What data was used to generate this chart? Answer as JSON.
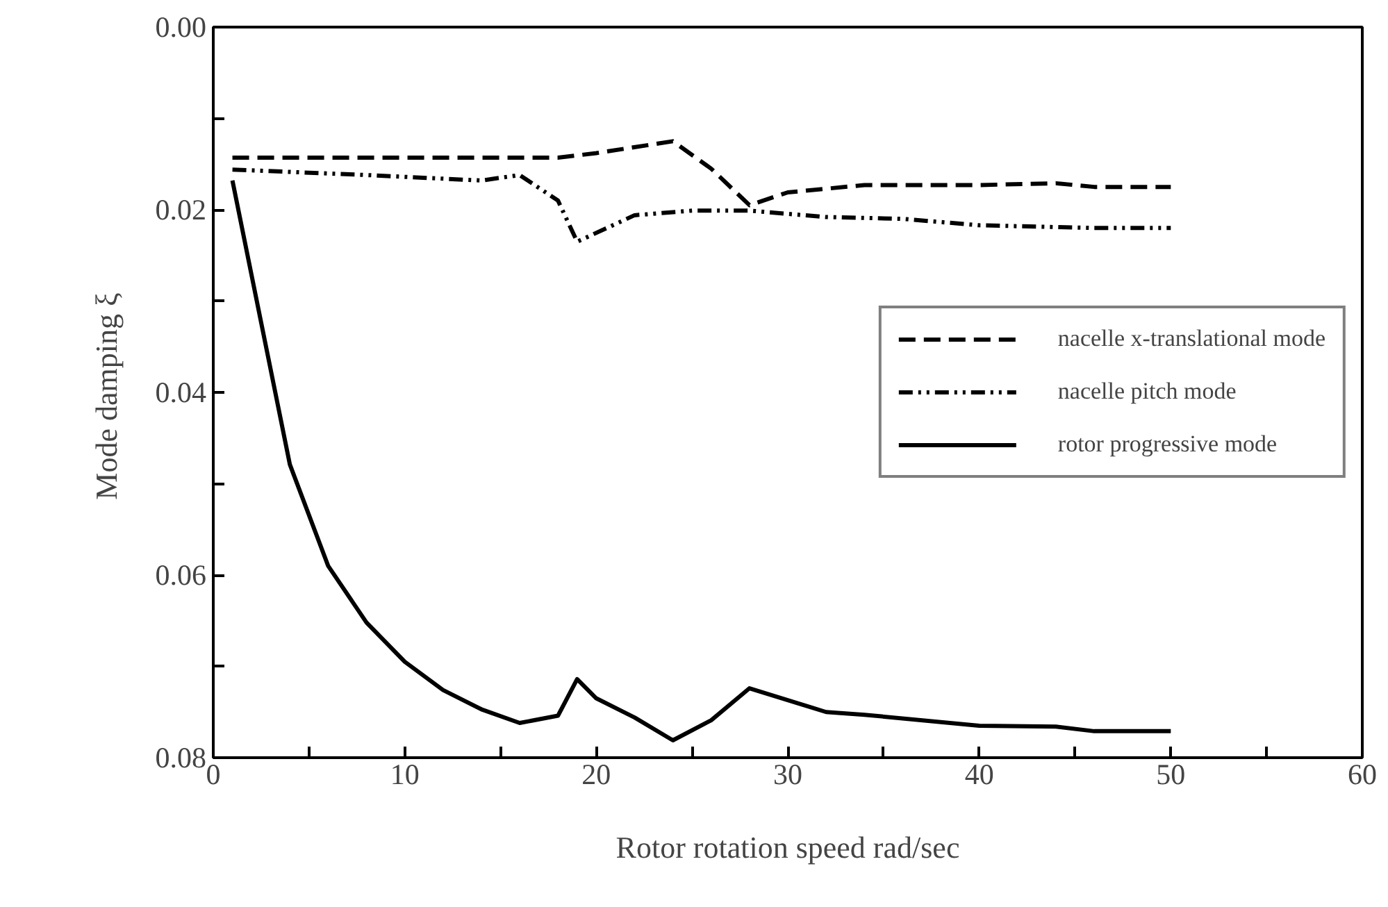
{
  "chart_data": {
    "type": "line",
    "xlabel": "Rotor rotation speed rad/sec",
    "ylabel": "Mode damping  ξ",
    "xlim": [
      0,
      60
    ],
    "ylim": [
      0.08,
      0.0
    ],
    "xticks": [
      0,
      {
        "value": 5,
        "label": null
      },
      10,
      {
        "value": 15,
        "label": null
      },
      20,
      {
        "value": 25,
        "label": null
      },
      30,
      {
        "value": 35,
        "label": null
      },
      40,
      {
        "value": 45,
        "label": null
      },
      50,
      {
        "value": 55,
        "label": null
      },
      60
    ],
    "yticks": [
      {
        "value": 0.0,
        "label": "0.00"
      },
      {
        "value": 0.01,
        "label": null
      },
      {
        "value": 0.02,
        "label": "0.02"
      },
      {
        "value": 0.03,
        "label": null
      },
      {
        "value": 0.04,
        "label": "0.04"
      },
      {
        "value": 0.05,
        "label": null
      },
      {
        "value": 0.06,
        "label": "0.06"
      },
      {
        "value": 0.07,
        "label": null
      },
      {
        "value": 0.08,
        "label": "0.08"
      }
    ],
    "grid": false,
    "legend": "right",
    "marker": "none",
    "series": [
      {
        "name": "nacelle x-translational mode",
        "color": "#000000",
        "line_style": "dashed",
        "x": [
          1,
          18,
          20,
          24,
          26,
          28,
          30,
          34,
          40,
          44,
          46,
          50
        ],
        "values": [
          0.0143,
          0.0143,
          0.0138,
          0.0125,
          0.0155,
          0.0195,
          0.0181,
          0.0173,
          0.0173,
          0.0171,
          0.0175,
          0.0175
        ]
      },
      {
        "name": "nacelle pitch mode",
        "color": "#000000",
        "line_style": "dashdot",
        "x": [
          1,
          8,
          14,
          16,
          18,
          19,
          22,
          25,
          28,
          32,
          36,
          40,
          46,
          50
        ],
        "values": [
          0.0156,
          0.0162,
          0.0168,
          0.0162,
          0.019,
          0.0235,
          0.0206,
          0.0201,
          0.0201,
          0.0208,
          0.021,
          0.0217,
          0.022,
          0.022
        ]
      },
      {
        "name": "rotor progressive mode",
        "color": "#000000",
        "line_style": "solid",
        "x": [
          1,
          4,
          6,
          8,
          10,
          12,
          14,
          16,
          18,
          19,
          20,
          22,
          24,
          26,
          28,
          32,
          34,
          40,
          44,
          46,
          50
        ],
        "values": [
          0.0168,
          0.0479,
          0.059,
          0.0652,
          0.0695,
          0.0726,
          0.0747,
          0.0762,
          0.0754,
          0.0714,
          0.0735,
          0.0756,
          0.0781,
          0.0759,
          0.0724,
          0.075,
          0.0753,
          0.0765,
          0.0766,
          0.0771,
          0.0771
        ]
      }
    ]
  }
}
